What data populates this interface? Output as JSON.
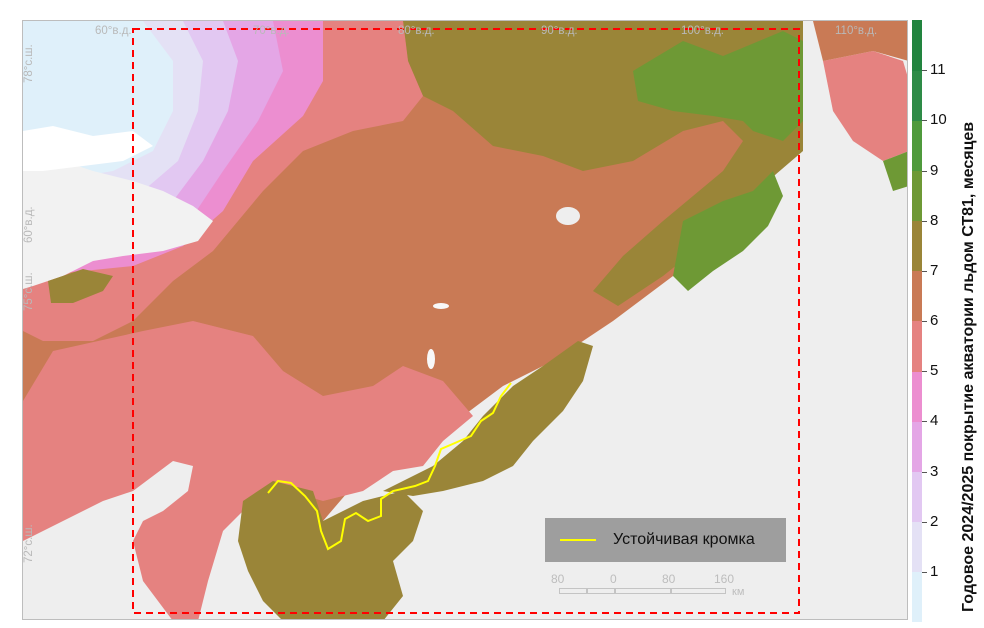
{
  "map": {
    "lon_labels": [
      "60°в.д.",
      "70°в.д.",
      "80°в.д.",
      "90°в.д.",
      "100°в.д.",
      "110°в.д."
    ],
    "lat_labels": [
      "78°с.ш.",
      "60°в.д.",
      "75°с.ш.",
      "72°с.ш."
    ],
    "legend": {
      "line_label": "Устойчивая кромка",
      "line_color": "#ffff00"
    },
    "scale": {
      "ticks": [
        "80",
        "0",
        "80",
        "160"
      ],
      "unit": "км"
    },
    "colorbar": {
      "title": "Годовое 2024/2025 покрытие акватории льдом СТ81, месяцев",
      "tick_labels": [
        "1",
        "2",
        "3",
        "4",
        "5",
        "6",
        "7",
        "8",
        "9",
        "10",
        "11"
      ],
      "colors": [
        "#dff0fa",
        "#e4e1f5",
        "#e2c8f2",
        "#e4a6e6",
        "#ec8ed0",
        "#e58280",
        "#c97a55",
        "#9a8538",
        "#6e9935",
        "#4f9a3c",
        "#2e8b47",
        "#22843f"
      ]
    },
    "colors": {
      "land": "#eeeeee",
      "region_border": "#ff0000",
      "accent_ice": "#dff0fa"
    }
  }
}
